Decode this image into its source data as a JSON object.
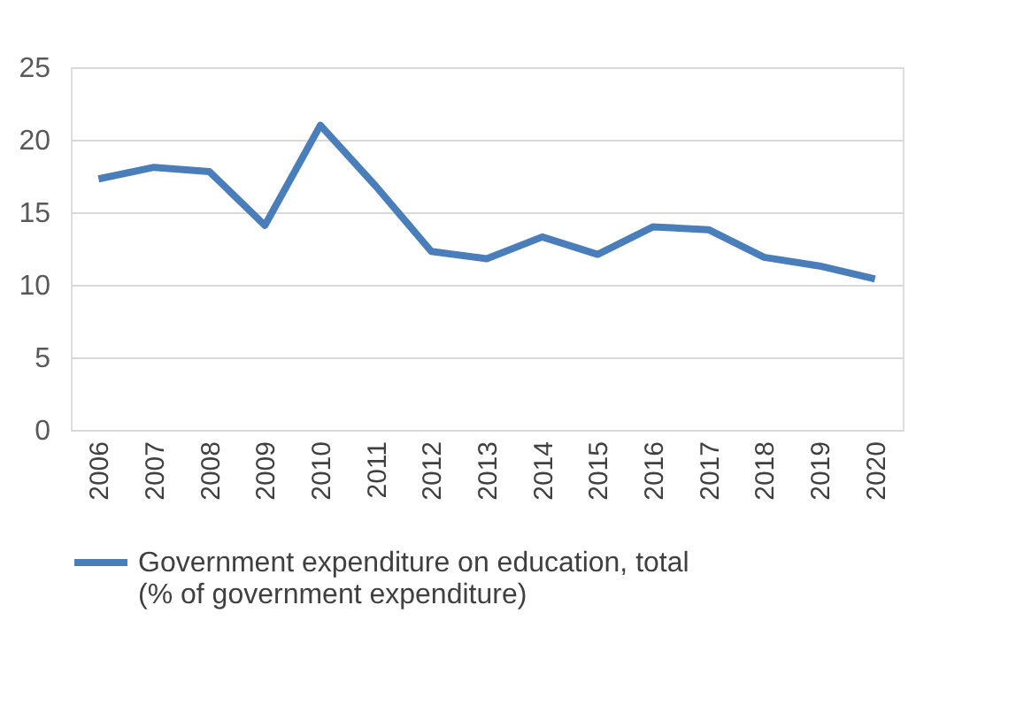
{
  "chart_data": {
    "type": "line",
    "categories": [
      "2006",
      "2007",
      "2008",
      "2009",
      "2010",
      "2011",
      "2012",
      "2013",
      "2014",
      "2015",
      "2016",
      "2017",
      "2018",
      "2019",
      "2020"
    ],
    "series": [
      {
        "name": "Government expenditure on education, total (% of government expenditure)",
        "color": "#4a7ebb",
        "values": [
          17.3,
          18.1,
          17.8,
          14.1,
          21.0,
          16.8,
          12.3,
          11.8,
          13.3,
          12.1,
          14.0,
          13.8,
          11.9,
          11.3,
          10.4
        ]
      }
    ],
    "ylim": [
      0,
      25
    ],
    "yticks": [
      0,
      5,
      10,
      15,
      20,
      25
    ],
    "grid": "y",
    "legend": "bottom",
    "marker": "none",
    "line_style": "solid"
  }
}
